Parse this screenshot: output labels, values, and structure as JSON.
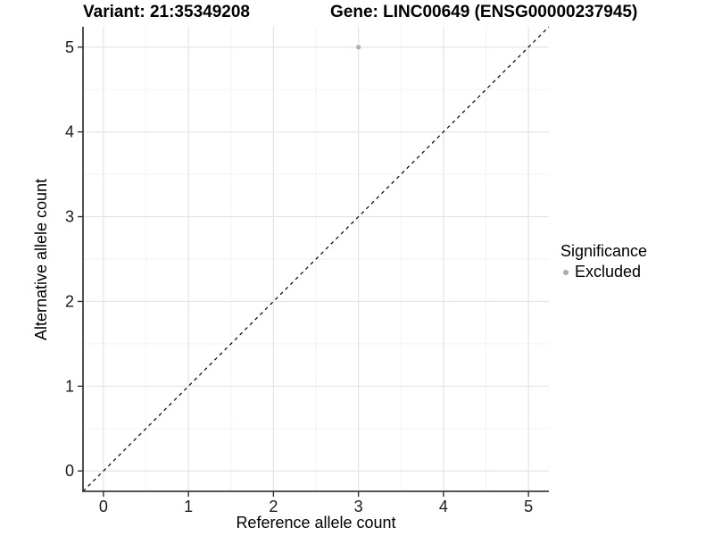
{
  "titles": {
    "variant": "Variant: 21:35349208",
    "gene": "Gene: LINC00649 (ENSG00000237945)"
  },
  "chart_data": {
    "type": "scatter",
    "xlabel": "Reference allele count",
    "ylabel": "Alternative allele count",
    "xlim": [
      -0.24,
      5.24
    ],
    "ylim": [
      -0.24,
      5.24
    ],
    "xticks": [
      0,
      1,
      2,
      3,
      4,
      5
    ],
    "yticks": [
      0,
      1,
      2,
      3,
      4,
      5
    ],
    "minor_xticks": [
      0.5,
      1.5,
      2.5,
      3.5,
      4.5
    ],
    "minor_yticks": [
      0.5,
      1.5,
      2.5,
      3.5,
      4.5
    ],
    "grid": true,
    "points": [
      {
        "x": 3,
        "y": 5,
        "significance": "Excluded"
      }
    ],
    "reference_line": {
      "type": "identity",
      "slope": 1,
      "intercept": 0,
      "style": "dashed"
    },
    "legend": {
      "title": "Significance",
      "position": "right",
      "entries": [
        {
          "label": "Excluded",
          "color": "#ababab"
        }
      ]
    },
    "colors": {
      "background": "#ffffff",
      "point": "#b0b0b0",
      "grid_major": "#e4e4e4",
      "grid_minor": "#f2f2f2",
      "axis_line": "#3c3c3c",
      "tick_mark": "#333333",
      "tick_label": "#1a1a1a",
      "reference_line": "#000000"
    }
  }
}
